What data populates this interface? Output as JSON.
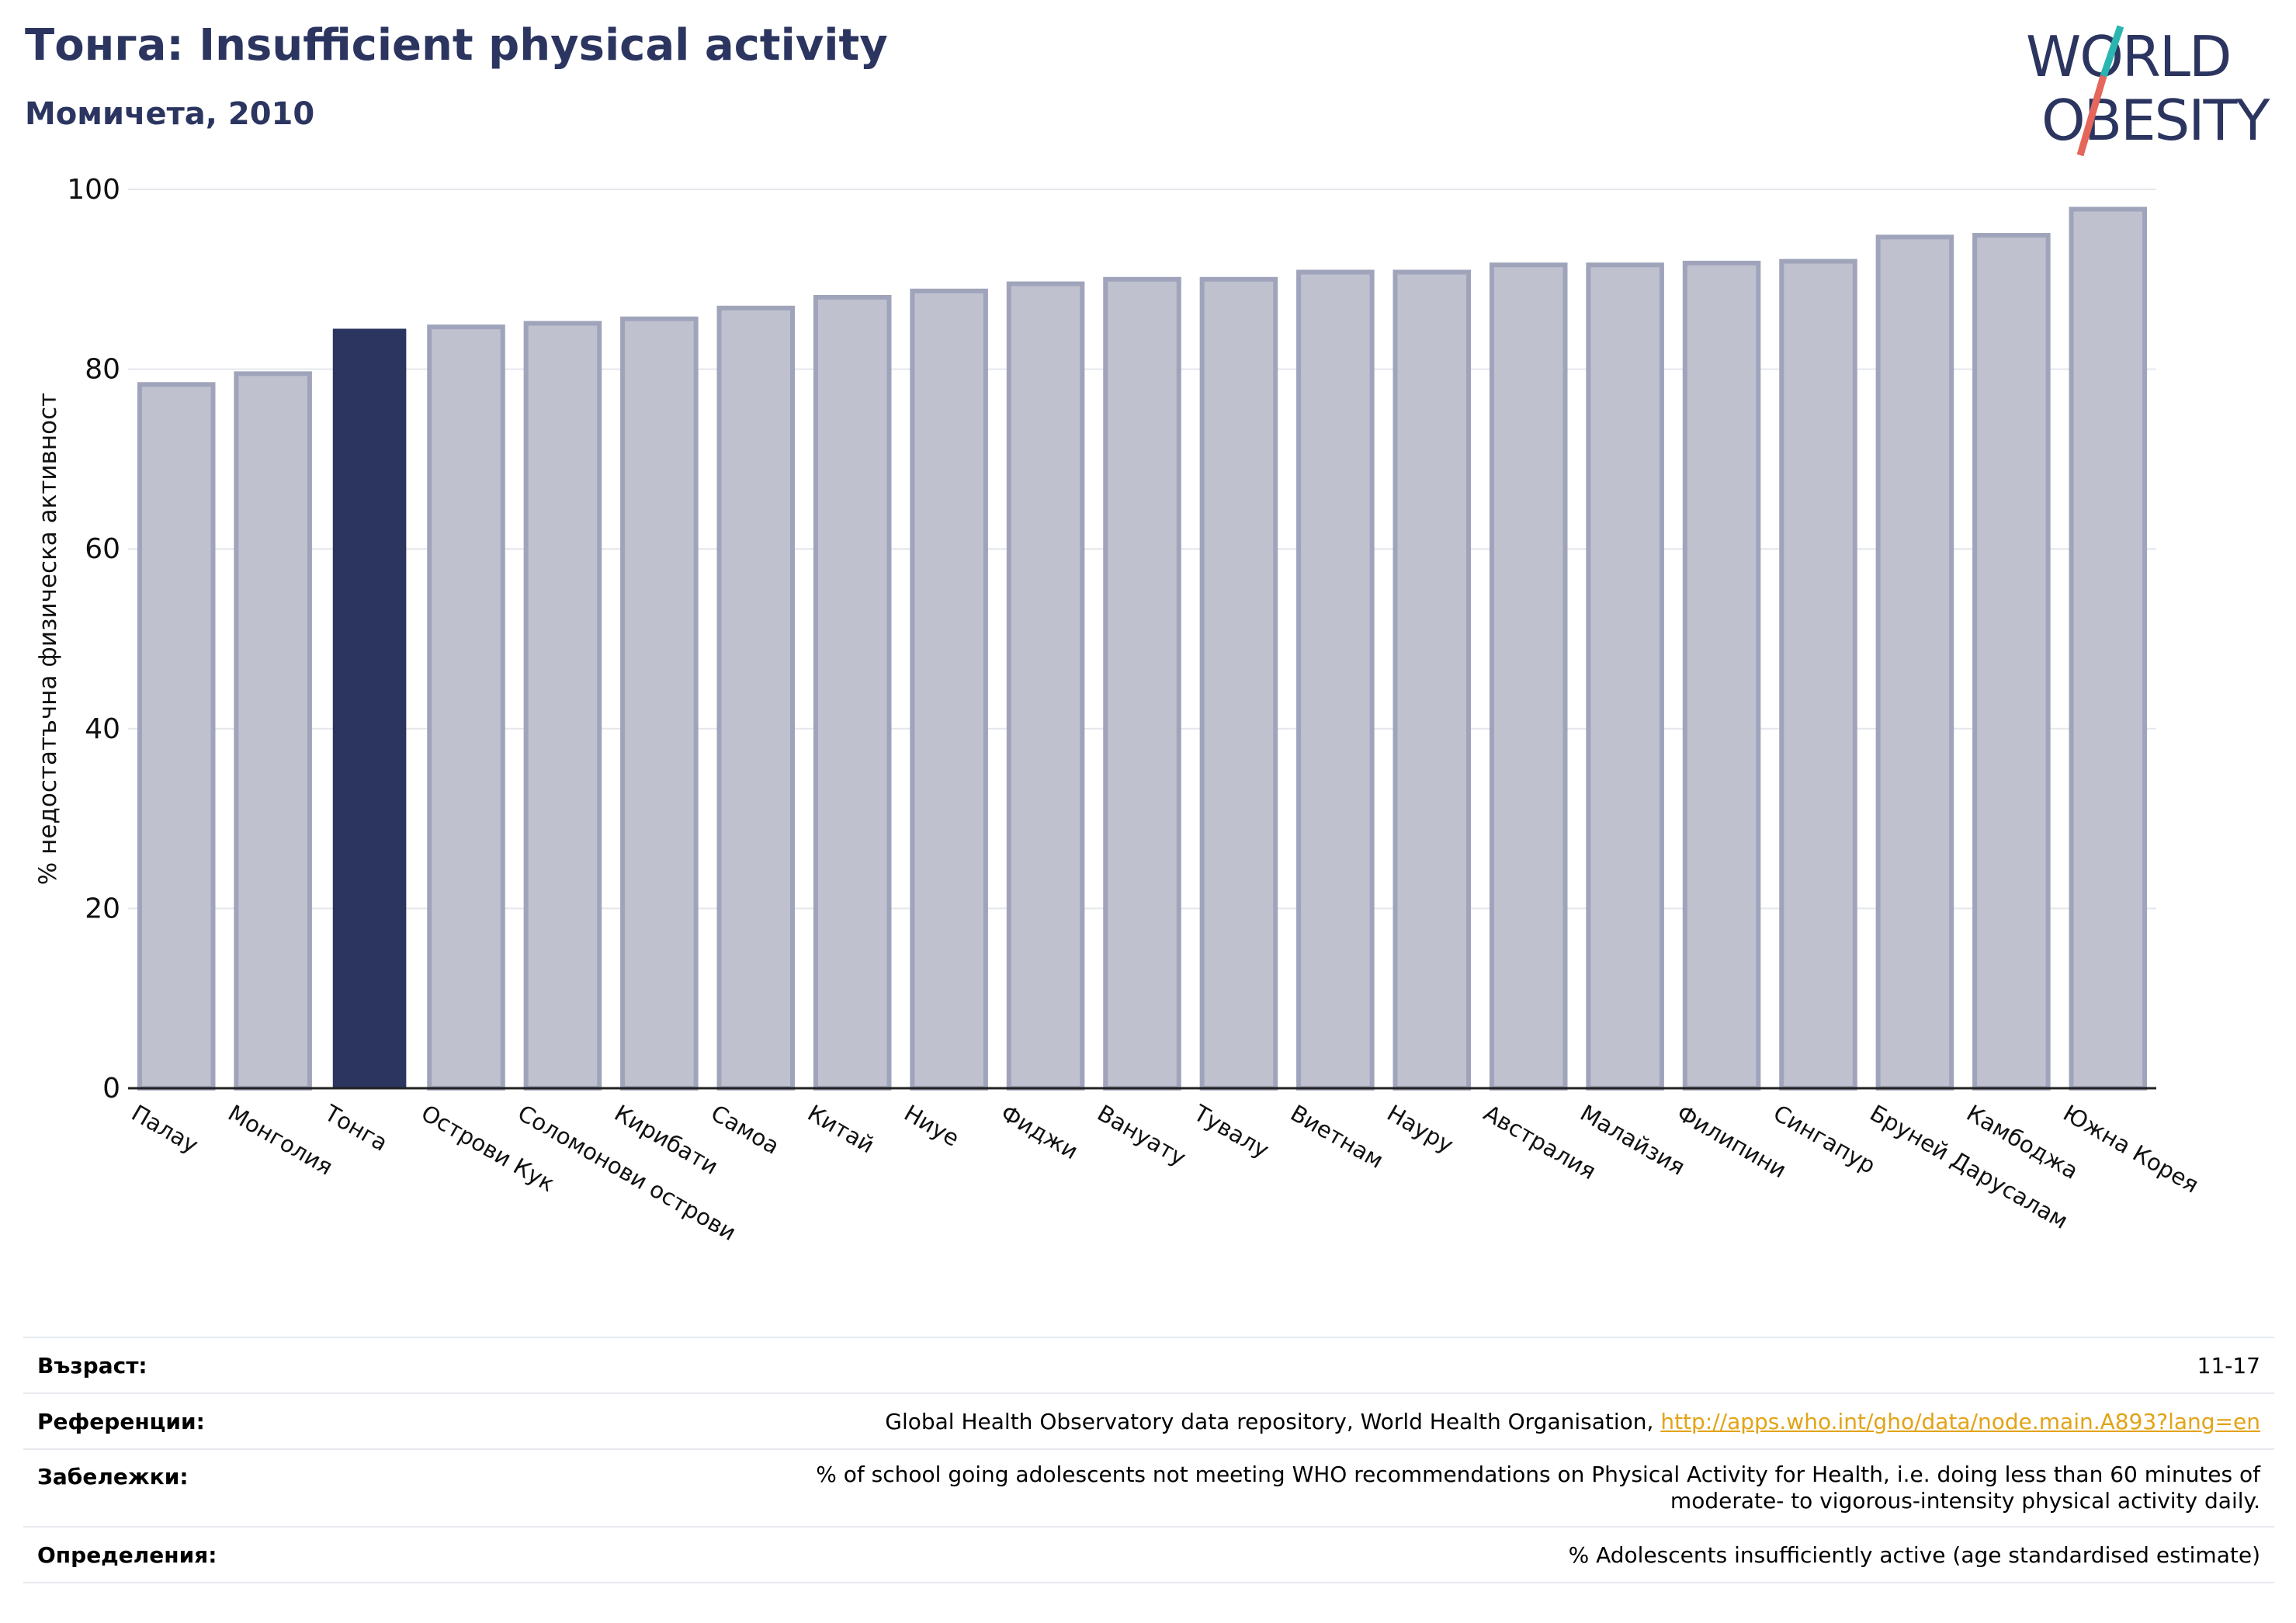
{
  "header": {
    "title": "Тонга: Insufficient physical activity",
    "subtitle": "Момичета, 2010"
  },
  "logo": {
    "line1": "WORLD",
    "line2": "OBESITY",
    "colors": {
      "text": "#2b3560",
      "slash_top": "#2bb5b0",
      "slash_bottom": "#e5665a"
    }
  },
  "colors": {
    "highlight": "#2b3560",
    "bar": "#bfc1cf",
    "bar_edge": "#a0a4bb",
    "link": "#e2a317"
  },
  "chart_data": {
    "type": "bar",
    "ylabel": "% недостатъчна физическа активност",
    "ylim": [
      0,
      100
    ],
    "yticks": [
      0,
      20,
      40,
      60,
      80,
      100
    ],
    "grid": true,
    "highlight": "Тонга",
    "categories": [
      "Палау",
      "Монголия",
      "Тонга",
      "Острови Кук",
      "Соломонови острови",
      "Кирибати",
      "Самоа",
      "Китай",
      "Ниуе",
      "Фиджи",
      "Вануату",
      "Тувалу",
      "Виетнам",
      "Науру",
      "Австралия",
      "Малайзия",
      "Филипини",
      "Сингапур",
      "Бруней Дарусалам",
      "Камбоджа",
      "Южна Корея"
    ],
    "values": [
      78.3,
      79.5,
      84.5,
      84.7,
      85.1,
      85.6,
      86.8,
      88.0,
      88.7,
      89.5,
      90.0,
      90.0,
      90.8,
      90.8,
      91.6,
      91.6,
      91.8,
      92.0,
      94.7,
      94.9,
      97.8
    ]
  },
  "info": {
    "rows": [
      {
        "label": "Възраст:",
        "value": "11-17"
      },
      {
        "label": "Референции:",
        "value": "Global Health Observatory data repository, World Health Organisation,",
        "link": "http://apps.who.int/gho/data/node.main.A893?lang=en"
      },
      {
        "label": "Забележки:",
        "value": "% of school going adolescents not meeting WHO recommendations on Physical Activity for Health, i.e. doing less than 60 minutes of",
        "value2": "moderate- to vigorous-intensity physical activity daily."
      },
      {
        "label": "Определения:",
        "value": "% Adolescents insufficiently active (age standardised estimate)"
      }
    ]
  }
}
